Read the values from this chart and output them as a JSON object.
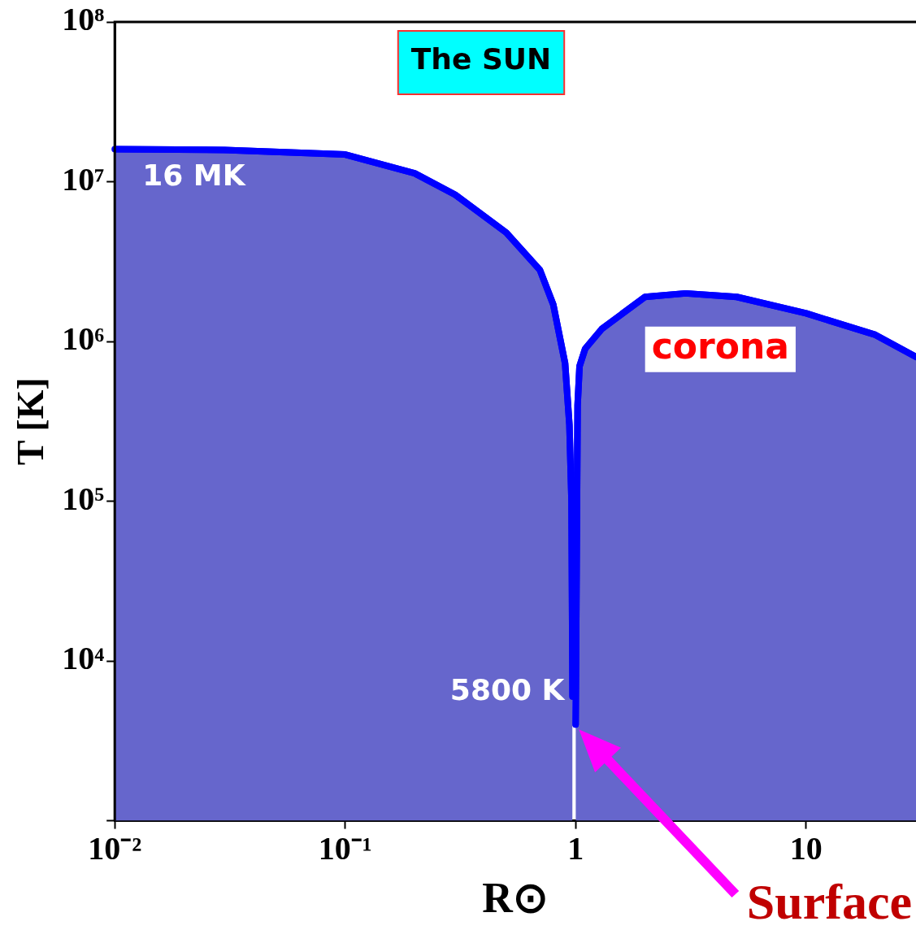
{
  "chart_data": {
    "type": "area",
    "xlabel": "R⊙",
    "ylabel": "T [K]",
    "log": "xy",
    "xlim": [
      0.01,
      30
    ],
    "ylim": [
      1000,
      100000000
    ],
    "xticks": [
      {
        "value": 0.01,
        "label": "10⁻²"
      },
      {
        "value": 0.1,
        "label": "10⁻¹"
      },
      1,
      10
    ],
    "yticks": [
      {
        "value": 1000,
        "label": null
      },
      {
        "value": 10000,
        "label": "10⁴"
      },
      {
        "value": 100000,
        "label": "10⁵"
      },
      {
        "value": 1000000,
        "label": "10⁶"
      },
      {
        "value": 10000000,
        "label": "10⁷"
      },
      {
        "value": 100000000,
        "label": "10⁸"
      }
    ],
    "grid": false,
    "legend": false,
    "series": [
      {
        "color": "#0000ff",
        "x": [
          0.01,
          0.03,
          0.1,
          0.2,
          0.3,
          0.5,
          0.7,
          0.8,
          0.9,
          0.94,
          0.96,
          0.97
        ],
        "values": [
          16000000,
          15800000,
          14800000,
          11300000,
          8300000,
          4800000,
          2800000,
          1700000,
          730000,
          300000,
          100000,
          6000
        ]
      },
      {
        "color": "#0000ff",
        "x": [
          1.0,
          1.02,
          1.04,
          1.1,
          1.3,
          2,
          3,
          5,
          10,
          20,
          30
        ],
        "values": [
          4000,
          400000,
          700000,
          900000,
          1200000,
          1900000,
          2000000,
          1900000,
          1500000,
          1100000,
          800000
        ]
      }
    ],
    "annotations": [
      "The SUN",
      "16 MK",
      "5800 K",
      "corona",
      "Surface"
    ]
  }
}
